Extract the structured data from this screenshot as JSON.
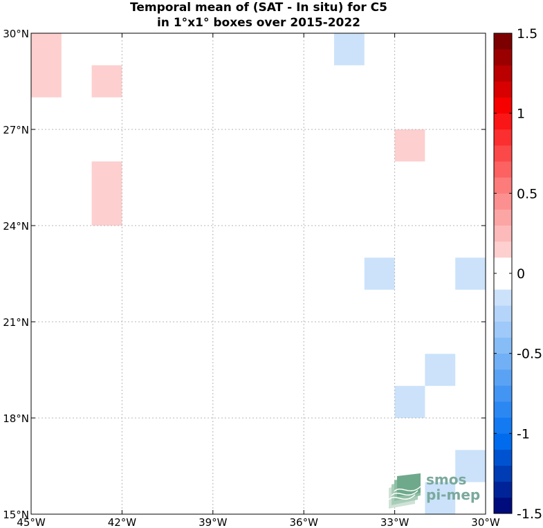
{
  "title_line1": "Temporal mean of (SAT - In situ) for C5",
  "title_line2": "in 1°x1° boxes over 2015-2022",
  "logo": {
    "line1": "smos",
    "line2": "pi-mep"
  },
  "colors": {
    "positive_light": "#fdd9d9",
    "negative_light": "#d6e8fb",
    "grid": "#b5b5b5"
  },
  "chart_data": {
    "type": "heatmap",
    "title": "Temporal mean of (SAT - In situ) for C5 in 1°x1° boxes over 2015-2022",
    "x_range": [
      -45,
      -30
    ],
    "y_range": [
      15,
      30
    ],
    "x_ticks": [
      {
        "value": -45,
        "label": "45°W"
      },
      {
        "value": -42,
        "label": "42°W"
      },
      {
        "value": -39,
        "label": "39°W"
      },
      {
        "value": -36,
        "label": "36°W"
      },
      {
        "value": -33,
        "label": "33°W"
      },
      {
        "value": -30,
        "label": "30°W"
      }
    ],
    "y_ticks": [
      {
        "value": 15,
        "label": "15°N"
      },
      {
        "value": 18,
        "label": "18°N"
      },
      {
        "value": 21,
        "label": "21°N"
      },
      {
        "value": 24,
        "label": "24°N"
      },
      {
        "value": 27,
        "label": "27°N"
      },
      {
        "value": 30,
        "label": "30°N"
      }
    ],
    "grid": true,
    "colorbar": {
      "range": [
        -1.5,
        1.5
      ],
      "step": 0.1,
      "ticks": [
        {
          "value": 1.5,
          "label": "1.5"
        },
        {
          "value": 1,
          "label": "1"
        },
        {
          "value": 0.5,
          "label": "0.5"
        },
        {
          "value": 0,
          "label": "0"
        },
        {
          "value": -0.5,
          "label": "-0.5"
        },
        {
          "value": -1,
          "label": "-1"
        },
        {
          "value": -1.5,
          "label": "-1.5"
        }
      ]
    },
    "cells": [
      {
        "lon": -45,
        "lat": 28,
        "w": 1,
        "h": 2,
        "value": 0.15
      },
      {
        "lon": -43,
        "lat": 28,
        "w": 1,
        "h": 1,
        "value": 0.15
      },
      {
        "lon": -43,
        "lat": 24,
        "w": 1,
        "h": 2,
        "value": 0.15
      },
      {
        "lon": -35,
        "lat": 29,
        "w": 1,
        "h": 1,
        "value": -0.15
      },
      {
        "lon": -33,
        "lat": 26,
        "w": 1,
        "h": 1,
        "value": 0.15
      },
      {
        "lon": -34,
        "lat": 22,
        "w": 1,
        "h": 1,
        "value": -0.15
      },
      {
        "lon": -31,
        "lat": 22,
        "w": 1,
        "h": 1,
        "value": -0.15
      },
      {
        "lon": -32,
        "lat": 19,
        "w": 1,
        "h": 1,
        "value": -0.15
      },
      {
        "lon": -33,
        "lat": 18,
        "w": 1,
        "h": 1,
        "value": -0.15
      },
      {
        "lon": -31,
        "lat": 16,
        "w": 1,
        "h": 1,
        "value": -0.15
      },
      {
        "lon": -32,
        "lat": 15,
        "w": 1,
        "h": 1,
        "value": -0.15
      }
    ]
  }
}
